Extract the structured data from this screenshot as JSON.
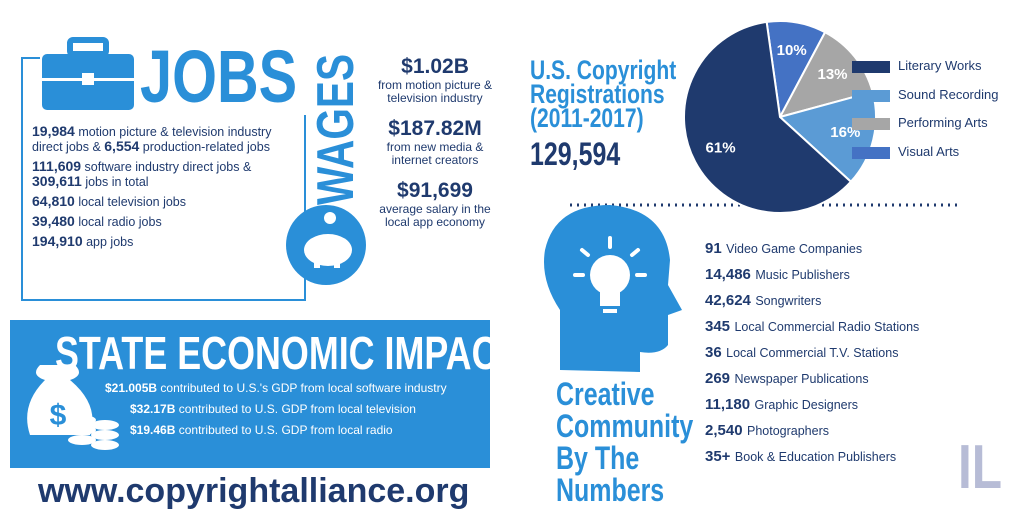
{
  "jobs": {
    "title": "JOBS",
    "items": [
      [
        "19,984",
        "motion picture & television industry direct jobs &",
        "6,554",
        "production-related jobs"
      ],
      [
        "111,609",
        "software industry direct jobs &",
        "309,611",
        "jobs in total"
      ],
      [
        "64,810",
        "local television jobs"
      ],
      [
        "39,480",
        "local radio jobs"
      ],
      [
        "194,910",
        "app jobs"
      ]
    ]
  },
  "wages": {
    "title": "WAGES",
    "items": [
      {
        "amount": "$1.02B",
        "text": "from motion picture & television industry"
      },
      {
        "amount": "$187.82M",
        "text": "from new media & internet creators"
      },
      {
        "amount": "$91,699",
        "text": "average salary in the local app economy"
      }
    ]
  },
  "impact": {
    "title": "STATE ECONOMIC IMPACT",
    "items": [
      {
        "amount": "$21.005B",
        "text": "contributed to U.S.'s GDP from local software industry"
      },
      {
        "amount": "$32.17B",
        "text": "contributed to U.S. GDP from local television"
      },
      {
        "amount": "$19.46B",
        "text": "contributed to U.S. GDP from local radio"
      }
    ]
  },
  "website": "www.copyrightalliance.org",
  "copyright": {
    "title": "U.S. Copyright Registrations (2011-2017)",
    "total": "129,594"
  },
  "chart_data": {
    "type": "pie",
    "categories": [
      "Literary Works",
      "Sound Recording",
      "Performing Arts",
      "Visual Arts"
    ],
    "values": [
      61,
      16,
      13,
      10
    ],
    "value_labels": [
      "61%",
      "16%",
      "13%",
      "10%"
    ],
    "colors": [
      "#1f3a6e",
      "#5b9bd5",
      "#a6a6a6",
      "#4472c4"
    ]
  },
  "creative": {
    "title": "Creative Community By The Numbers",
    "items": [
      {
        "number": "91",
        "text": "Video Game Companies"
      },
      {
        "number": "14,486",
        "text": "Music Publishers"
      },
      {
        "number": "42,624",
        "text": "Songwriters"
      },
      {
        "number": "345",
        "text": "Local Commercial Radio Stations"
      },
      {
        "number": "36",
        "text": "Local Commercial T.V. Stations"
      },
      {
        "number": "269",
        "text": "Newspaper Publications"
      },
      {
        "number": "11,180",
        "text": "Graphic Designers"
      },
      {
        "number": "2,540",
        "text": "Photographers"
      },
      {
        "number": "35+",
        "text": "Book & Education Publishers"
      }
    ]
  },
  "logo": "IL"
}
